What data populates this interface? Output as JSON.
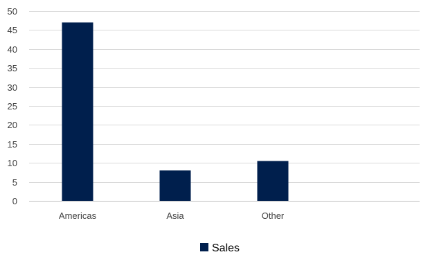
{
  "chart_data": {
    "type": "bar",
    "categories": [
      "Americas",
      "Asia",
      "Other"
    ],
    "series": [
      {
        "name": "Sales",
        "values": [
          47,
          8,
          10.5
        ]
      }
    ],
    "title": "",
    "xlabel": "",
    "ylabel": "",
    "ylim": [
      0,
      50
    ],
    "yticks": [
      "0",
      "5",
      "10",
      "15",
      "20",
      "25",
      "30",
      "35",
      "40",
      "45",
      "50"
    ],
    "grid": true,
    "legend_position": "bottom",
    "colors": {
      "bar": "#001f4d",
      "grid": "#d9d9d9",
      "axis": "#bfbfbf"
    }
  }
}
